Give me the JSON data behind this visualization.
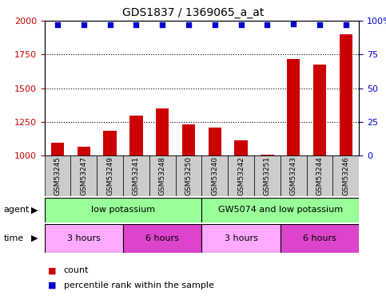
{
  "title": "GDS1837 / 1369065_a_at",
  "samples": [
    "GSM53245",
    "GSM53247",
    "GSM53249",
    "GSM53241",
    "GSM53248",
    "GSM53250",
    "GSM53240",
    "GSM53242",
    "GSM53251",
    "GSM53243",
    "GSM53244",
    "GSM53246"
  ],
  "bar_values": [
    1095,
    1065,
    1185,
    1295,
    1350,
    1230,
    1205,
    1110,
    1005,
    1715,
    1675,
    1900
  ],
  "percentile_values": [
    97,
    97,
    97,
    97,
    97,
    97,
    97,
    97,
    97,
    98,
    97,
    97
  ],
  "bar_color": "#cc0000",
  "dot_color": "#0000cc",
  "ylim_left": [
    1000,
    2000
  ],
  "ylim_right": [
    0,
    100
  ],
  "yticks_left": [
    1000,
    1250,
    1500,
    1750,
    2000
  ],
  "yticks_right": [
    0,
    25,
    50,
    75,
    100
  ],
  "agent_labels": [
    "low potassium",
    "GW5074 and low potassium"
  ],
  "agent_color": "#99ff99",
  "time_labels": [
    "3 hours",
    "6 hours",
    "3 hours",
    "6 hours"
  ],
  "time_color_light": "#ff99ff",
  "time_color_dark": "#dd44dd",
  "legend_count_color": "#cc0000",
  "legend_dot_color": "#0000cc",
  "bg_color": "#ffffff",
  "left_label_color": "#cc0000",
  "right_label_color": "#0000cc",
  "bar_baseline": 1000,
  "sample_box_color": "#cccccc",
  "plot_bg": "#ffffff"
}
